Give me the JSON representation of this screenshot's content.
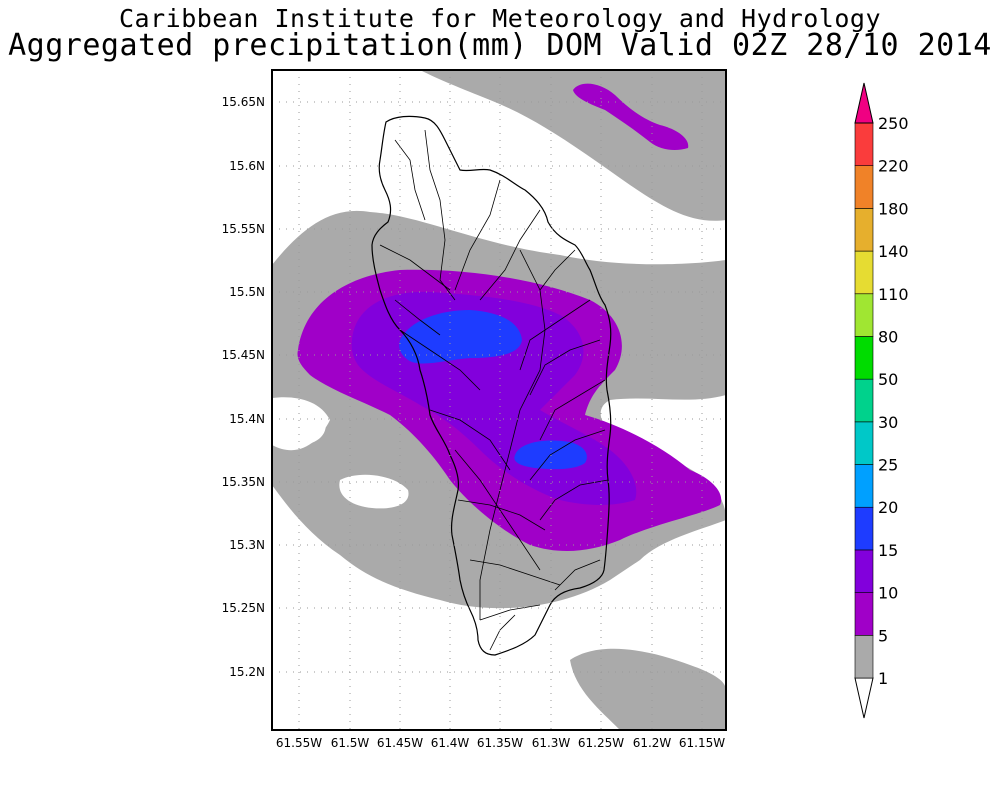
{
  "header": {
    "title": "Caribbean Institute for Meteorology and Hydrology",
    "subtitle": "Aggregated precipitation(mm) DOM Valid 02Z 28/10 2014"
  },
  "map": {
    "lat_labels": [
      "15.65N",
      "15.6N",
      "15.55N",
      "15.5N",
      "15.45N",
      "15.4N",
      "15.35N",
      "15.3N",
      "15.25N",
      "15.2N"
    ],
    "lon_labels": [
      "61.55W",
      "61.5W",
      "61.45W",
      "61.4W",
      "61.35W",
      "61.3W",
      "61.25W",
      "61.2W",
      "61.15W"
    ]
  },
  "colorbar": {
    "levels": [
      "1",
      "5",
      "10",
      "15",
      "20",
      "25",
      "30",
      "50",
      "80",
      "110",
      "140",
      "180",
      "220",
      "250"
    ],
    "colors": [
      "#aaaaaa",
      "#a000c8",
      "#8200dc",
      "#1e3cff",
      "#00a0ff",
      "#00c8c8",
      "#00d28c",
      "#00dc00",
      "#a0e632",
      "#e6dc32",
      "#e6af2d",
      "#f08228",
      "#fa3c3c",
      "#f00082"
    ]
  },
  "colors": {
    "gray_contour": "#aaaaaa",
    "purple_5": "#a000c8",
    "purple_10": "#8200dc",
    "blue_15": "#1e3cff"
  }
}
